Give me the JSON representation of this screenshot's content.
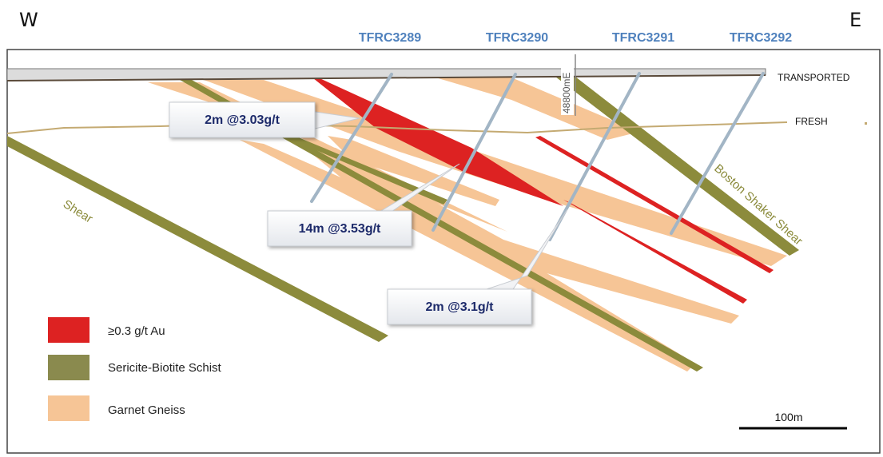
{
  "compass": {
    "west": "W",
    "east": "E"
  },
  "drillholes": [
    {
      "id": "TFRC3289"
    },
    {
      "id": "TFRC3290"
    },
    {
      "id": "TFRC3291"
    },
    {
      "id": "TFRC3292"
    }
  ],
  "layers": {
    "transported": "TRANSPORTED",
    "fresh": "FRESH"
  },
  "gridline": "48800mE",
  "structures": {
    "shear": "Shear",
    "boston_shaker_shear": "Boston Shaker Shear"
  },
  "intercepts": [
    {
      "text": "2m @3.03g/t"
    },
    {
      "text": "14m @3.53g/t"
    },
    {
      "text": "2m @3.1g/t"
    }
  ],
  "legend": [
    {
      "label": "≥0.3 g/t Au",
      "color": "#dd2222"
    },
    {
      "label": "Sericite-Biotite Schist",
      "color": "#8a8a4e"
    },
    {
      "label": "Garnet Gneiss",
      "color": "#f6c596"
    }
  ],
  "scale_bar": {
    "label": "100m"
  },
  "colors": {
    "gneiss": "#f6c596",
    "schist": "#8c8b3c",
    "gold": "#dd2222",
    "drill": "#a2b5c5",
    "fresh_line": "#c4aa72",
    "hole_label": "#4f81bd"
  }
}
